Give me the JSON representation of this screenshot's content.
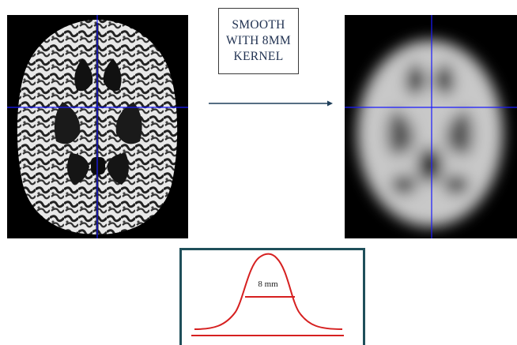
{
  "step_label": {
    "line1": "SMOOTH",
    "line2": "WITH 8MM",
    "line3": "KERNEL"
  },
  "kernel": {
    "width_label": "8 mm"
  },
  "colors": {
    "crosshair": "#1a1aff",
    "kernel_curve": "#d62020",
    "frame": "#1f4f5a",
    "arrow": "#1f3f5a"
  }
}
